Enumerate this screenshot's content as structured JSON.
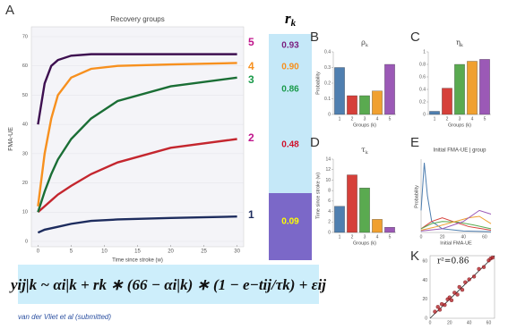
{
  "panel_labels": [
    "A",
    "B",
    "C",
    "D",
    "E",
    "K"
  ],
  "recovery": {
    "title": "Recovery groups",
    "x_label": "Time since stroke (w)",
    "y_label": "FMA-UE",
    "xlim": [
      -1,
      31
    ],
    "ylim": [
      0,
      70
    ],
    "xticks": [
      0,
      5,
      10,
      15,
      20,
      25,
      30
    ],
    "yticks": [
      0,
      10,
      20,
      30,
      40,
      50,
      60,
      70
    ],
    "series": [
      {
        "name": "1",
        "color": "#1d2c5e",
        "label_color": "#1d2c5e",
        "x": [
          0,
          1,
          2,
          3,
          5,
          8,
          12,
          20,
          30
        ],
        "values": [
          3,
          4,
          4.5,
          5,
          6,
          7,
          7.5,
          8,
          8.5
        ]
      },
      {
        "name": "2",
        "color": "#c4262e",
        "label_color": "#c0168c",
        "x": [
          0,
          1,
          2,
          3,
          5,
          8,
          12,
          20,
          30
        ],
        "values": [
          10,
          12,
          14,
          16,
          19,
          23,
          27,
          32,
          35
        ]
      },
      {
        "name": "3",
        "color": "#1a6e35",
        "label_color": "#1a9a4a",
        "x": [
          0,
          1,
          2,
          3,
          5,
          8,
          12,
          20,
          30
        ],
        "values": [
          10,
          17,
          23,
          28,
          35,
          42,
          48,
          53,
          56
        ]
      },
      {
        "name": "4",
        "color": "#f7901e",
        "label_color": "#f7901e",
        "x": [
          0,
          1,
          2,
          3,
          5,
          8,
          12,
          20,
          30
        ],
        "values": [
          12,
          30,
          42,
          50,
          56,
          59,
          60,
          60.5,
          61
        ]
      },
      {
        "name": "5",
        "color": "#3d0f50",
        "label_color": "#c0168c",
        "x": [
          0,
          1,
          2,
          3,
          5,
          8,
          12,
          20,
          30
        ],
        "values": [
          40,
          54,
          60,
          62,
          63.5,
          64,
          64,
          64,
          64
        ]
      }
    ]
  },
  "rk": {
    "symbol": "r",
    "subscript": "k",
    "values": [
      0.93,
      0.9,
      0.86,
      0.48,
      0.09
    ],
    "value_labels": [
      "0.93",
      "0.90",
      "0.86",
      "0.48",
      "0.09"
    ],
    "colors": [
      "#7a1f7f",
      "#f7901e",
      "#1a9a4a",
      "#d0112b",
      "#ffff00"
    ]
  },
  "bars": [
    {
      "symbol": "ρ",
      "subscript": "k",
      "y_label": "Probability",
      "x_label": "Groups (k)",
      "categories": [
        "1",
        "2",
        "3",
        "4",
        "5"
      ],
      "values": [
        0.3,
        0.12,
        0.12,
        0.15,
        0.32
      ],
      "colors": [
        "#4f7fb0",
        "#d6403a",
        "#5aaa50",
        "#f0a030",
        "#9b59b6"
      ],
      "ylim": [
        0,
        0.4
      ],
      "yticks": [
        0,
        0.1,
        0.2,
        0.3,
        0.4
      ]
    },
    {
      "symbol": "η",
      "subscript": "k",
      "y_label": "",
      "x_label": "Groups (k)",
      "categories": [
        "1",
        "2",
        "3",
        "4",
        "5"
      ],
      "values": [
        0.05,
        0.42,
        0.8,
        0.85,
        0.88
      ],
      "colors": [
        "#4f7fb0",
        "#d6403a",
        "#5aaa50",
        "#f0a030",
        "#9b59b6"
      ],
      "ylim": [
        0,
        1
      ],
      "yticks": [
        0,
        0.2,
        0.4,
        0.6,
        0.8,
        1
      ]
    },
    {
      "symbol": "τ",
      "subscript": "k",
      "y_label": "Time since stroke (w)",
      "x_label": "Groups (k)",
      "categories": [
        "1",
        "2",
        "3",
        "4",
        "5"
      ],
      "values": [
        5,
        11,
        8.5,
        2.5,
        1
      ],
      "colors": [
        "#4f7fb0",
        "#d6403a",
        "#5aaa50",
        "#f0a030",
        "#9b59b6"
      ],
      "ylim": [
        0,
        14
      ],
      "yticks": [
        0,
        2,
        4,
        6,
        8,
        10,
        12,
        14
      ]
    }
  ],
  "density": {
    "title": "Initial FMA-UE | group",
    "x_label": "Initial FMA-UE",
    "y_label": "Probability",
    "xlim": [
      0,
      66
    ],
    "ylim": [
      0,
      1
    ],
    "xticks": [
      0,
      20,
      40,
      60
    ],
    "series": [
      {
        "color": "#4f7fb0",
        "x": [
          0,
          3,
          6,
          10,
          20,
          40,
          66
        ],
        "values": [
          0.3,
          0.95,
          0.5,
          0.15,
          0.05,
          0.02,
          0.01
        ]
      },
      {
        "color": "#d6403a",
        "x": [
          0,
          10,
          20,
          30,
          45,
          66
        ],
        "values": [
          0.05,
          0.15,
          0.2,
          0.15,
          0.08,
          0.03
        ]
      },
      {
        "color": "#5aaa50",
        "x": [
          0,
          10,
          20,
          35,
          50,
          66
        ],
        "values": [
          0.05,
          0.12,
          0.15,
          0.14,
          0.1,
          0.05
        ]
      },
      {
        "color": "#f0a030",
        "x": [
          0,
          15,
          30,
          45,
          55,
          66
        ],
        "values": [
          0.03,
          0.08,
          0.14,
          0.2,
          0.22,
          0.12
        ]
      },
      {
        "color": "#9b59b6",
        "x": [
          0,
          20,
          40,
          55,
          66
        ],
        "values": [
          0.02,
          0.05,
          0.15,
          0.3,
          0.25
        ]
      }
    ]
  },
  "validation": {
    "r2_label": "r²=0.86",
    "xlim": [
      0,
      66
    ],
    "ylim": [
      0,
      66
    ],
    "ticks": [
      0,
      20,
      40,
      60
    ],
    "color": "#b5262a",
    "x": [
      5,
      8,
      10,
      12,
      15,
      18,
      20,
      22,
      25,
      28,
      30,
      33,
      36,
      40,
      45,
      50,
      55,
      60,
      62,
      64
    ],
    "values": [
      7,
      12,
      9,
      15,
      14,
      20,
      22,
      19,
      27,
      25,
      33,
      30,
      38,
      41,
      44,
      52,
      54,
      61,
      63,
      64
    ]
  },
  "formula": "yij|k ~ αi|k + rk ∗ (66 − αi|k) ∗ (1 − e−tij/τk) + εij",
  "citation": "van der Vliet et al (submitted)"
}
